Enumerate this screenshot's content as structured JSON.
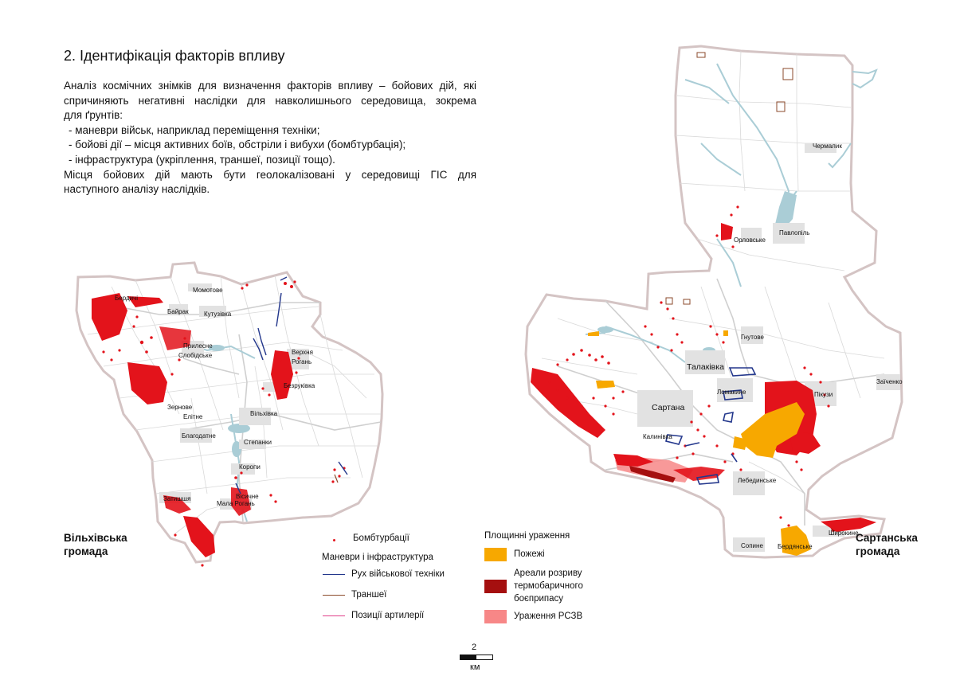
{
  "heading": "2. Ідентифікація факторів впливу",
  "intro": {
    "line1": "Аналіз космічних знімків для визначення факторів впливу – бойових дій, які",
    "line2": "спричиняють негативні наслідки для навколишнього середовища, зокрема",
    "line3": "для ґрунтів:",
    "bullets": [
      "- маневри військ, наприклад переміщення техніки;",
      "- бойові дії – місця активних боїв, обстріли і вибухи (бомбтурбація);",
      "- інфраструктура (укріплення, траншеї, позиції тощо)."
    ],
    "line4": "Місця бойових дій мають бути геолокалізовані у середовищі ГІС для",
    "line5": "наступного аналізу наслідків."
  },
  "hromada_left": {
    "line1": "Вільхівська",
    "line2": "громада"
  },
  "hromada_right": {
    "line1": "Сартанська",
    "line2": "громада"
  },
  "left_map_labels": {
    "berdychi": "Бердичі",
    "momotove": "Момотове",
    "bairak": "Байрак",
    "kutuzivka": "Кутузівка",
    "prylesne": "Прилесне",
    "slobidske": "Слобідське",
    "verkhnia": "Верхня",
    "rohanka": "Рогань",
    "bezruky": "Безруківка",
    "zernove": "Зернове",
    "elitne": "Елітне",
    "vilkhivka": "Вільхівка",
    "blahodatne": "Благодатне",
    "stepanky": "Степанки",
    "korotych": "Коропи",
    "zatyshshia": "Затишшя",
    "vysichne": "Вісичне",
    "mala_rohan": "Мала Рогань"
  },
  "right_map_labels": {
    "chermalyk": "Чермалик",
    "orlovske": "Орловське",
    "pavlopil": "Павлопіль",
    "hnutove": "Гнутове",
    "talakivka": "Талаківка",
    "lomakyne": "Ломакине",
    "pikuzy": "Пікузи",
    "zaichenko": "Заїченко",
    "sartana": "Сартана",
    "kalinivka": "Калинівка",
    "lebedynske": "Лебединське",
    "sopyne": "Сопине",
    "berdianske": "Бердянське",
    "shyrokyne": "Широкине"
  },
  "legend": {
    "bombturbation": "Бомбтурбації",
    "maneuvers_title": "Маневри і інфраструктура",
    "vehicle_movement": "Рух військової техніки",
    "trenches": "Траншеї",
    "artillery": "Позиції артилерії",
    "area_title": "Площинні ураження",
    "fires": "Пожежі",
    "thermobaric_line1": "Ареали розриву",
    "thermobaric_line2": "термобаричного",
    "thermobaric_line3": "боєприпасу",
    "mlrs": "Ураження РСЗВ"
  },
  "scale": {
    "value": "2",
    "unit": "км"
  },
  "colors": {
    "bombturbation": "#e3131b",
    "vehicle_movement": "#23378c",
    "trenches": "#8b4a2b",
    "artillery": "#e0408a",
    "fires": "#f7a800",
    "thermobaric": "#a50f0f",
    "mlrs": "#f78787",
    "boundary": "#d4c4c4",
    "water": "#aacdd6",
    "roads": "#d9d9d9",
    "settlements": "#dcdcdc"
  }
}
